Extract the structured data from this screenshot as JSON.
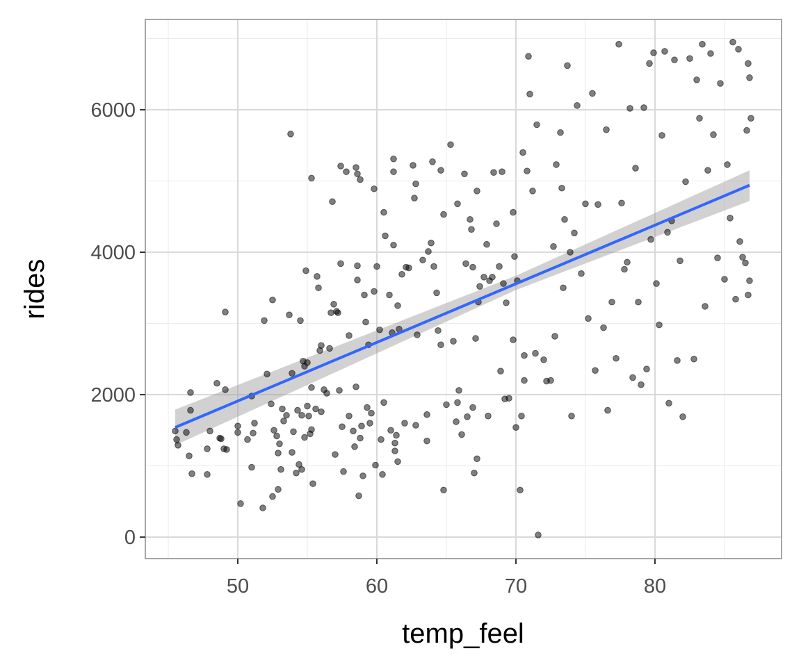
{
  "chart_data": {
    "type": "scatter",
    "title": "",
    "xlabel": "temp_feel",
    "ylabel": "rides",
    "xlim": [
      43.35,
      89.1
    ],
    "ylim": [
      -302,
      7268
    ],
    "x_ticks": [
      50,
      60,
      70,
      80
    ],
    "y_ticks": [
      0,
      2000,
      4000,
      6000
    ],
    "x_tick_labels": [
      "50",
      "60",
      "70",
      "80"
    ],
    "y_tick_labels": [
      "0",
      "2000",
      "4000",
      "6000"
    ],
    "grid": true,
    "legend": "none",
    "colors": {
      "points": "#000000",
      "smooth_line": "#3366FF",
      "ribbon": "#999999",
      "grid_major": "#d9d9d9",
      "grid_minor": "#ebebeb",
      "panel_border": "#a6a6a6"
    },
    "smooth": {
      "method": "lm",
      "line": [
        [
          45.5,
          1540
        ],
        [
          86.8,
          4940
        ]
      ],
      "ci_lower": [
        [
          45.5,
          1290
        ],
        [
          70,
          3470
        ],
        [
          86.8,
          4720
        ]
      ],
      "ci_upper": [
        [
          45.5,
          1790
        ],
        [
          70,
          3670
        ],
        [
          86.8,
          5150
        ]
      ]
    },
    "points": [
      [
        45.5,
        1490
      ],
      [
        45.6,
        1370
      ],
      [
        45.7,
        1290
      ],
      [
        46.3,
        1470
      ],
      [
        46.6,
        2030
      ],
      [
        46.6,
        1780
      ],
      [
        46.5,
        1140
      ],
      [
        46.7,
        890
      ],
      [
        47.8,
        880
      ],
      [
        47.8,
        1240
      ],
      [
        48.0,
        1490
      ],
      [
        48.5,
        2160
      ],
      [
        48.7,
        1390
      ],
      [
        48.8,
        1380
      ],
      [
        49.0,
        1240
      ],
      [
        49.1,
        3160
      ],
      [
        49.1,
        2070
      ],
      [
        49.2,
        1230
      ],
      [
        50.0,
        1470
      ],
      [
        50.0,
        1560
      ],
      [
        50.2,
        470
      ],
      [
        50.7,
        1370
      ],
      [
        51.0,
        1980
      ],
      [
        51.0,
        980
      ],
      [
        51.1,
        1460
      ],
      [
        51.2,
        1600
      ],
      [
        51.8,
        410
      ],
      [
        51.9,
        3040
      ],
      [
        52.1,
        2290
      ],
      [
        52.4,
        1870
      ],
      [
        52.5,
        570
      ],
      [
        52.5,
        3330
      ],
      [
        52.6,
        1500
      ],
      [
        52.8,
        1420
      ],
      [
        52.9,
        1180
      ],
      [
        52.9,
        670
      ],
      [
        53.0,
        1310
      ],
      [
        53.1,
        950
      ],
      [
        53.2,
        1800
      ],
      [
        53.3,
        1630
      ],
      [
        53.5,
        1710
      ],
      [
        53.7,
        3120
      ],
      [
        53.8,
        5660
      ],
      [
        53.9,
        2300
      ],
      [
        53.9,
        1190
      ],
      [
        54.0,
        1480
      ],
      [
        54.2,
        900
      ],
      [
        54.3,
        1780
      ],
      [
        54.4,
        1020
      ],
      [
        54.5,
        3040
      ],
      [
        54.6,
        1710
      ],
      [
        54.6,
        950
      ],
      [
        54.7,
        2470
      ],
      [
        54.8,
        1400
      ],
      [
        54.8,
        2400
      ],
      [
        54.9,
        3740
      ],
      [
        55.0,
        2450
      ],
      [
        55.0,
        1840
      ],
      [
        55.1,
        1700
      ],
      [
        55.2,
        1450
      ],
      [
        55.3,
        1510
      ],
      [
        55.3,
        5040
      ],
      [
        55.3,
        2100
      ],
      [
        55.4,
        750
      ],
      [
        55.6,
        1800
      ],
      [
        55.7,
        3660
      ],
      [
        55.8,
        3500
      ],
      [
        55.9,
        2620
      ],
      [
        56.0,
        2690
      ],
      [
        56.0,
        1760
      ],
      [
        56.2,
        2070
      ],
      [
        56.4,
        2020
      ],
      [
        56.6,
        2650
      ],
      [
        56.7,
        3150
      ],
      [
        56.8,
        4710
      ],
      [
        56.9,
        3270
      ],
      [
        57.0,
        1160
      ],
      [
        57.1,
        3170
      ],
      [
        57.2,
        3150
      ],
      [
        57.3,
        2060
      ],
      [
        57.4,
        5210
      ],
      [
        57.4,
        3840
      ],
      [
        57.5,
        1550
      ],
      [
        57.6,
        920
      ],
      [
        57.8,
        5130
      ],
      [
        58.0,
        2830
      ],
      [
        58.0,
        1700
      ],
      [
        58.3,
        1490
      ],
      [
        58.4,
        1270
      ],
      [
        58.5,
        2110
      ],
      [
        58.5,
        5190
      ],
      [
        58.6,
        5100
      ],
      [
        58.6,
        3610
      ],
      [
        58.6,
        3810
      ],
      [
        58.7,
        580
      ],
      [
        58.8,
        5020
      ],
      [
        58.8,
        1390
      ],
      [
        58.9,
        1560
      ],
      [
        59.0,
        860
      ],
      [
        59.1,
        3400
      ],
      [
        59.2,
        3020
      ],
      [
        59.3,
        1820
      ],
      [
        59.4,
        2700
      ],
      [
        59.5,
        1600
      ],
      [
        59.6,
        1740
      ],
      [
        59.8,
        4890
      ],
      [
        59.8,
        3450
      ],
      [
        59.9,
        1010
      ],
      [
        60.0,
        3800
      ],
      [
        60.2,
        2910
      ],
      [
        60.3,
        1370
      ],
      [
        60.4,
        880
      ],
      [
        60.5,
        1890
      ],
      [
        60.5,
        4560
      ],
      [
        60.6,
        4230
      ],
      [
        60.9,
        3400
      ],
      [
        61.0,
        1500
      ],
      [
        61.1,
        2870
      ],
      [
        61.2,
        5310
      ],
      [
        61.2,
        5130
      ],
      [
        61.2,
        4100
      ],
      [
        61.3,
        1210
      ],
      [
        61.3,
        1320
      ],
      [
        61.4,
        1430
      ],
      [
        61.5,
        1060
      ],
      [
        61.5,
        3250
      ],
      [
        61.6,
        2920
      ],
      [
        61.8,
        3690
      ],
      [
        62.0,
        1600
      ],
      [
        62.1,
        3790
      ],
      [
        62.3,
        3780
      ],
      [
        62.6,
        5220
      ],
      [
        62.7,
        4760
      ],
      [
        62.8,
        4960
      ],
      [
        62.8,
        1570
      ],
      [
        62.9,
        2840
      ],
      [
        63.3,
        3890
      ],
      [
        63.6,
        1720
      ],
      [
        63.6,
        1350
      ],
      [
        63.7,
        4010
      ],
      [
        63.9,
        4130
      ],
      [
        64.0,
        5270
      ],
      [
        64.1,
        3800
      ],
      [
        64.3,
        3430
      ],
      [
        64.4,
        2900
      ],
      [
        64.6,
        2700
      ],
      [
        64.6,
        5150
      ],
      [
        64.8,
        4530
      ],
      [
        64.8,
        660
      ],
      [
        65.0,
        1860
      ],
      [
        65.3,
        5510
      ],
      [
        65.5,
        2750
      ],
      [
        65.7,
        1620
      ],
      [
        65.8,
        4680
      ],
      [
        65.8,
        1890
      ],
      [
        65.9,
        2060
      ],
      [
        66.1,
        1440
      ],
      [
        66.3,
        5100
      ],
      [
        66.4,
        3840
      ],
      [
        66.5,
        1690
      ],
      [
        66.7,
        4460
      ],
      [
        66.8,
        4320
      ],
      [
        66.9,
        1820
      ],
      [
        66.9,
        3790
      ],
      [
        67.0,
        900
      ],
      [
        67.1,
        2790
      ],
      [
        67.2,
        4860
      ],
      [
        67.2,
        1100
      ],
      [
        67.3,
        3300
      ],
      [
        67.4,
        3520
      ],
      [
        67.7,
        3650
      ],
      [
        67.9,
        4110
      ],
      [
        68.0,
        1700
      ],
      [
        68.1,
        3600
      ],
      [
        68.3,
        3650
      ],
      [
        68.4,
        5120
      ],
      [
        68.6,
        4400
      ],
      [
        68.8,
        3800
      ],
      [
        68.9,
        2330
      ],
      [
        69.0,
        5130
      ],
      [
        69.1,
        3560
      ],
      [
        69.2,
        1940
      ],
      [
        69.3,
        3290
      ],
      [
        69.5,
        1950
      ],
      [
        69.8,
        2770
      ],
      [
        69.8,
        4560
      ],
      [
        69.9,
        3940
      ],
      [
        70.0,
        1540
      ],
      [
        70.1,
        3600
      ],
      [
        70.3,
        660
      ],
      [
        70.4,
        1700
      ],
      [
        70.5,
        5400
      ],
      [
        70.6,
        2550
      ],
      [
        70.6,
        2200
      ],
      [
        70.8,
        5140
      ],
      [
        70.9,
        6750
      ],
      [
        71.0,
        6220
      ],
      [
        71.2,
        4860
      ],
      [
        71.4,
        2580
      ],
      [
        71.5,
        5790
      ],
      [
        71.6,
        30
      ],
      [
        72.0,
        2490
      ],
      [
        72.2,
        2190
      ],
      [
        72.5,
        2200
      ],
      [
        72.7,
        4080
      ],
      [
        72.8,
        2820
      ],
      [
        72.9,
        5230
      ],
      [
        73.2,
        5680
      ],
      [
        73.3,
        4900
      ],
      [
        73.4,
        3500
      ],
      [
        73.5,
        4460
      ],
      [
        73.7,
        6620
      ],
      [
        73.9,
        4000
      ],
      [
        74.0,
        1700
      ],
      [
        74.2,
        4270
      ],
      [
        74.4,
        6060
      ],
      [
        74.7,
        3700
      ],
      [
        75.0,
        4680
      ],
      [
        75.2,
        3070
      ],
      [
        75.5,
        6230
      ],
      [
        75.7,
        2340
      ],
      [
        75.9,
        4670
      ],
      [
        76.3,
        2940
      ],
      [
        76.5,
        5720
      ],
      [
        76.6,
        1780
      ],
      [
        76.9,
        3300
      ],
      [
        77.2,
        2510
      ],
      [
        77.4,
        6920
      ],
      [
        77.6,
        4690
      ],
      [
        77.8,
        3760
      ],
      [
        78.0,
        3860
      ],
      [
        78.2,
        6020
      ],
      [
        78.4,
        2240
      ],
      [
        78.6,
        5180
      ],
      [
        78.8,
        3300
      ],
      [
        79.0,
        2140
      ],
      [
        79.2,
        6030
      ],
      [
        79.4,
        2360
      ],
      [
        79.6,
        6650
      ],
      [
        79.7,
        4180
      ],
      [
        79.9,
        6800
      ],
      [
        80.1,
        3560
      ],
      [
        80.3,
        2980
      ],
      [
        80.5,
        5640
      ],
      [
        80.7,
        6820
      ],
      [
        80.9,
        4280
      ],
      [
        81.0,
        1880
      ],
      [
        81.2,
        4440
      ],
      [
        81.4,
        6700
      ],
      [
        81.6,
        2480
      ],
      [
        81.8,
        3880
      ],
      [
        82.0,
        1690
      ],
      [
        82.2,
        4990
      ],
      [
        82.5,
        6720
      ],
      [
        82.8,
        2500
      ],
      [
        83.0,
        6420
      ],
      [
        83.2,
        5880
      ],
      [
        83.4,
        6920
      ],
      [
        83.6,
        3240
      ],
      [
        83.8,
        5150
      ],
      [
        84.0,
        6790
      ],
      [
        84.2,
        5650
      ],
      [
        84.5,
        3920
      ],
      [
        84.7,
        6370
      ],
      [
        85.0,
        3620
      ],
      [
        85.2,
        5230
      ],
      [
        85.4,
        4480
      ],
      [
        85.6,
        6950
      ],
      [
        85.8,
        3340
      ],
      [
        86.0,
        6850
      ],
      [
        86.1,
        4150
      ],
      [
        86.3,
        3930
      ],
      [
        86.5,
        3850
      ],
      [
        86.6,
        5710
      ],
      [
        86.7,
        6650
      ],
      [
        86.8,
        3600
      ],
      [
        86.9,
        5880
      ],
      [
        86.8,
        6450
      ],
      [
        86.7,
        3400
      ]
    ]
  }
}
